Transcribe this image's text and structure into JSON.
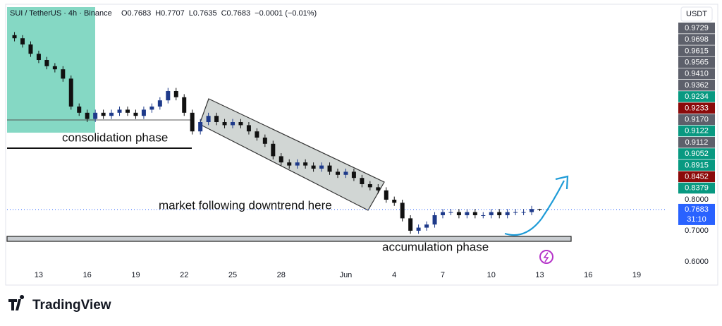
{
  "header": {
    "symbol": "SUI / TetherUS · 4h · Binance",
    "ohlc": [
      "O0.7683",
      "H0.7707",
      "L0.7635",
      "C0.7683",
      "−0.0001 (−0.01%)"
    ],
    "currency": "USDT"
  },
  "annotations": {
    "consolidation": "consolidation phase",
    "downtrend": "market following downtrend here",
    "accumulation": "accumulation phase"
  },
  "brand": "TradingView",
  "price_badges": [
    {
      "label": "0.9729",
      "color": "#5d606b"
    },
    {
      "label": "0.9698",
      "color": "#5d606b"
    },
    {
      "label": "0.9615",
      "color": "#5d606b"
    },
    {
      "label": "0.9565",
      "color": "#5d606b"
    },
    {
      "label": "0.9410",
      "color": "#5d606b"
    },
    {
      "label": "0.9362",
      "color": "#5d606b"
    },
    {
      "label": "0.9234",
      "color": "#089981"
    },
    {
      "label": "0.9233",
      "color": "#8b0a0a"
    },
    {
      "label": "0.9170",
      "color": "#5d606b"
    },
    {
      "label": "0.9122",
      "color": "#089981"
    },
    {
      "label": "0.9112",
      "color": "#5d606b"
    },
    {
      "label": "0.9052",
      "color": "#089981"
    },
    {
      "label": "0.8915",
      "color": "#089981"
    },
    {
      "label": "0.8452",
      "color": "#8b0a0a"
    },
    {
      "label": "0.8379",
      "color": "#089981"
    }
  ],
  "current_price": {
    "value": 0.7683,
    "label": "0.7683",
    "countdown": "31:10",
    "color": "#2962ff"
  },
  "chart_data": {
    "type": "candlestick",
    "up_color": "#1e3a8a",
    "down_color": "#111111",
    "xlim": [
      -1.96,
      38.83
    ],
    "ylim": [
      0.5795,
      1.4205
    ],
    "xticks": [
      {
        "value": 0,
        "label": "13"
      },
      {
        "value": 3,
        "label": "16"
      },
      {
        "value": 6,
        "label": "19"
      },
      {
        "value": 9,
        "label": "22"
      },
      {
        "value": 12,
        "label": "25"
      },
      {
        "value": 15,
        "label": "28"
      },
      {
        "value": 19,
        "label": "Jun"
      },
      {
        "value": 22,
        "label": "4"
      },
      {
        "value": 25,
        "label": "7"
      },
      {
        "value": 28,
        "label": "10"
      },
      {
        "value": 31,
        "label": "13"
      },
      {
        "value": 34,
        "label": "16"
      },
      {
        "value": 37,
        "label": "19"
      }
    ],
    "yticks": [
      {
        "value": 0.8,
        "label": "0.8000"
      },
      {
        "value": 0.7,
        "label": "0.7000"
      },
      {
        "value": 0.6,
        "label": "0.6000"
      }
    ],
    "x": [
      -1.5,
      -1,
      -0.5,
      0,
      0.5,
      1,
      1.5,
      2,
      2.5,
      3,
      3.5,
      4,
      4.5,
      5,
      5.5,
      6,
      6.5,
      7,
      7.5,
      8,
      8.5,
      9,
      9.5,
      10,
      10.5,
      11,
      11.5,
      12,
      12.5,
      13,
      13.5,
      14,
      14.5,
      15,
      15.5,
      16,
      16.5,
      17,
      17.5,
      18,
      18.5,
      19,
      19.5,
      20,
      20.5,
      21,
      21.5,
      22,
      22.5,
      23,
      23.5,
      24,
      24.5,
      25,
      25.5,
      26,
      26.5,
      27,
      27.5,
      28,
      28.5,
      29,
      29.5,
      30,
      30.5,
      31
    ],
    "open": [
      1.33,
      1.32,
      1.3,
      1.27,
      1.25,
      1.23,
      1.22,
      1.19,
      1.1,
      1.08,
      1.06,
      1.08,
      1.07,
      1.08,
      1.09,
      1.08,
      1.07,
      1.09,
      1.1,
      1.12,
      1.15,
      1.13,
      1.08,
      1.02,
      1.05,
      1.07,
      1.05,
      1.04,
      1.05,
      1.04,
      1.02,
      1.0,
      0.98,
      0.94,
      0.92,
      0.91,
      0.92,
      0.91,
      0.9,
      0.91,
      0.89,
      0.88,
      0.89,
      0.87,
      0.85,
      0.84,
      0.83,
      0.8,
      0.79,
      0.74,
      0.7,
      0.71,
      0.72,
      0.75,
      0.76,
      0.76,
      0.75,
      0.76,
      0.75,
      0.75,
      0.76,
      0.75,
      0.76,
      0.76,
      0.76,
      0.77
    ],
    "high": [
      1.34,
      1.33,
      1.31,
      1.28,
      1.26,
      1.24,
      1.23,
      1.2,
      1.11,
      1.09,
      1.09,
      1.09,
      1.09,
      1.1,
      1.1,
      1.09,
      1.1,
      1.11,
      1.13,
      1.16,
      1.16,
      1.14,
      1.09,
      1.06,
      1.08,
      1.08,
      1.06,
      1.06,
      1.06,
      1.05,
      1.03,
      1.01,
      0.99,
      0.95,
      0.93,
      0.93,
      0.93,
      0.92,
      0.92,
      0.92,
      0.9,
      0.9,
      0.9,
      0.88,
      0.86,
      0.85,
      0.84,
      0.81,
      0.8,
      0.75,
      0.72,
      0.73,
      0.76,
      0.77,
      0.77,
      0.77,
      0.77,
      0.77,
      0.76,
      0.77,
      0.77,
      0.77,
      0.77,
      0.77,
      0.78,
      0.7707
    ],
    "low": [
      1.31,
      1.29,
      1.26,
      1.24,
      1.22,
      1.21,
      1.18,
      1.09,
      1.07,
      1.05,
      1.05,
      1.06,
      1.06,
      1.07,
      1.07,
      1.06,
      1.06,
      1.08,
      1.09,
      1.11,
      1.12,
      1.07,
      1.01,
      1.01,
      1.04,
      1.04,
      1.03,
      1.03,
      1.03,
      1.01,
      0.99,
      0.97,
      0.93,
      0.91,
      0.9,
      0.9,
      0.9,
      0.89,
      0.89,
      0.88,
      0.87,
      0.87,
      0.86,
      0.84,
      0.83,
      0.82,
      0.79,
      0.78,
      0.73,
      0.69,
      0.69,
      0.7,
      0.71,
      0.74,
      0.75,
      0.74,
      0.74,
      0.74,
      0.74,
      0.74,
      0.74,
      0.74,
      0.75,
      0.75,
      0.75,
      0.7635
    ],
    "close": [
      1.32,
      1.3,
      1.27,
      1.25,
      1.23,
      1.22,
      1.19,
      1.1,
      1.08,
      1.06,
      1.08,
      1.07,
      1.08,
      1.09,
      1.08,
      1.07,
      1.09,
      1.1,
      1.12,
      1.15,
      1.13,
      1.08,
      1.02,
      1.05,
      1.07,
      1.05,
      1.04,
      1.05,
      1.04,
      1.02,
      1.0,
      0.98,
      0.94,
      0.92,
      0.91,
      0.92,
      0.91,
      0.9,
      0.91,
      0.89,
      0.88,
      0.89,
      0.87,
      0.85,
      0.84,
      0.83,
      0.8,
      0.79,
      0.74,
      0.7,
      0.71,
      0.72,
      0.75,
      0.76,
      0.76,
      0.75,
      0.76,
      0.75,
      0.75,
      0.76,
      0.75,
      0.76,
      0.76,
      0.76,
      0.77,
      0.7683
    ]
  }
}
